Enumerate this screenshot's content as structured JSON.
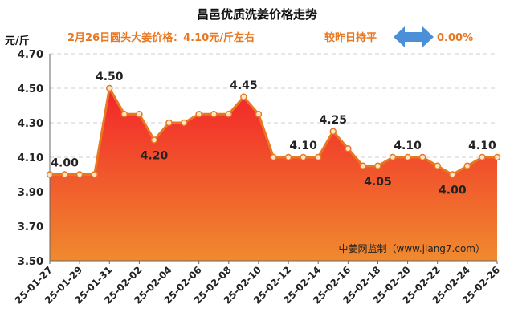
{
  "header": {
    "title": "昌邑优质洗姜价格走势",
    "unit": "元/斤",
    "price_note": "2月26日圆头大姜价格：4.10元/斤左右",
    "trend_note": "较昨日持平",
    "change_pct": "0.00%",
    "colors": {
      "accent": "#e87722",
      "arrow": "#4a8fd8",
      "title": "#111111"
    }
  },
  "chart_data": {
    "type": "area",
    "title": "昌邑优质洗姜价格走势",
    "xlabel": "",
    "ylabel": "元/斤",
    "ylim": [
      3.5,
      4.7
    ],
    "yticks": [
      "3.50",
      "3.70",
      "3.90",
      "4.10",
      "4.30",
      "4.50",
      "4.70"
    ],
    "x": [
      "25-01-27",
      "25-01-28",
      "25-01-29",
      "25-01-30",
      "25-01-31",
      "25-02-01",
      "25-02-02",
      "25-02-03",
      "25-02-04",
      "25-02-05",
      "25-02-06",
      "25-02-07",
      "25-02-08",
      "25-02-09",
      "25-02-10",
      "25-02-11",
      "25-02-12",
      "25-02-13",
      "25-02-14",
      "25-02-15",
      "25-02-16",
      "25-02-17",
      "25-02-18",
      "25-02-19",
      "25-02-20",
      "25-02-21",
      "25-02-22",
      "25-02-23",
      "25-02-24",
      "25-02-25",
      "25-02-26"
    ],
    "xtick_labels": [
      "25-01-27",
      "25-01-29",
      "25-01-31",
      "25-02-02",
      "25-02-04",
      "25-02-06",
      "25-02-08",
      "25-02-10",
      "25-02-12",
      "25-02-14",
      "25-02-16",
      "25-02-18",
      "25-02-20",
      "25-02-22",
      "25-02-24",
      "25-02-26"
    ],
    "series": [
      {
        "values": [
          4.0,
          4.0,
          4.0,
          4.0,
          4.5,
          4.35,
          4.35,
          4.2,
          4.3,
          4.3,
          4.35,
          4.35,
          4.35,
          4.45,
          4.35,
          4.1,
          4.1,
          4.1,
          4.1,
          4.25,
          4.15,
          4.05,
          4.05,
          4.1,
          4.1,
          4.1,
          4.05,
          4.0,
          4.05,
          4.1,
          4.1
        ]
      }
    ],
    "data_labels": [
      {
        "index": 1,
        "text": "4.00",
        "pos": "above"
      },
      {
        "index": 4,
        "text": "4.50",
        "pos": "above"
      },
      {
        "index": 7,
        "text": "4.20",
        "pos": "below"
      },
      {
        "index": 13,
        "text": "4.45",
        "pos": "above"
      },
      {
        "index": 17,
        "text": "4.10",
        "pos": "above"
      },
      {
        "index": 19,
        "text": "4.25",
        "pos": "above"
      },
      {
        "index": 22,
        "text": "4.05",
        "pos": "below"
      },
      {
        "index": 24,
        "text": "4.10",
        "pos": "above"
      },
      {
        "index": 27,
        "text": "4.00",
        "pos": "below"
      },
      {
        "index": 29,
        "text": "4.10",
        "pos": "above"
      }
    ],
    "grid": true,
    "colors": {
      "line": "#e87722",
      "fill_top": "#f2242a",
      "fill_bottom": "#f08a2e",
      "marker_fill": "#fde6c8"
    },
    "source": "中姜网监制（www.jiang7.com）"
  }
}
